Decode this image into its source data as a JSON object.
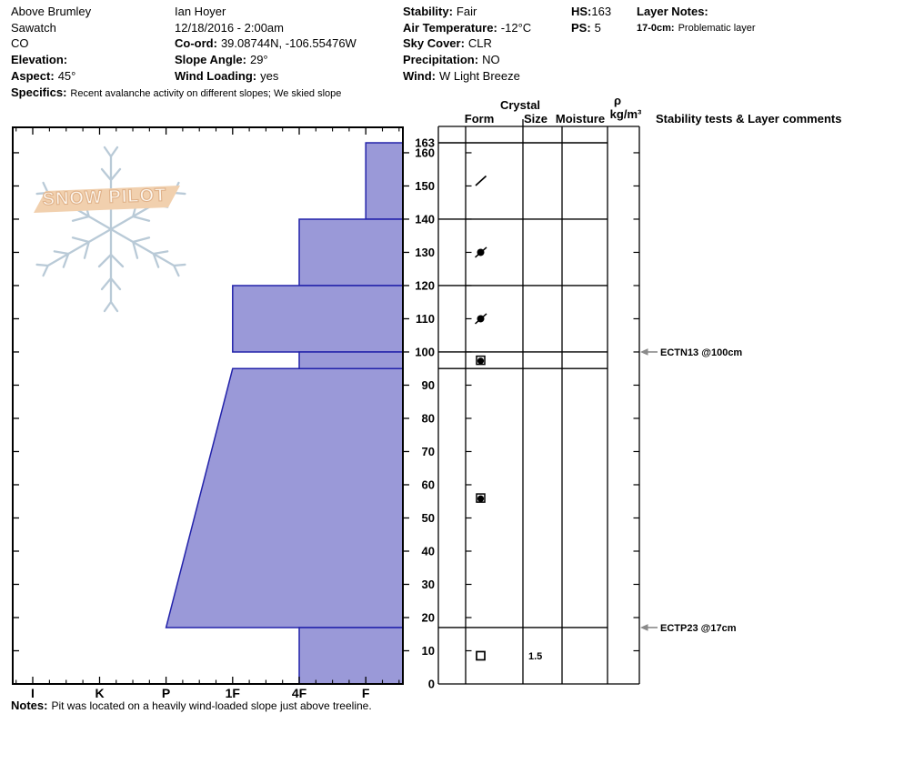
{
  "header": {
    "col1": {
      "l1": {
        "label": "",
        "value": "Above Brumley"
      },
      "l2": {
        "label": "",
        "value": "Sawatch"
      },
      "l3": {
        "label": "",
        "value": "CO"
      },
      "l4": {
        "label": "Elevation:",
        "value": ""
      },
      "l5": {
        "label": "Aspect:",
        "value": "45°"
      }
    },
    "col2": {
      "l1": {
        "label": "",
        "value": "Ian Hoyer"
      },
      "l2": {
        "label": "",
        "value": "12/18/2016 - 2:00am"
      },
      "l3": {
        "label": "Co-ord:",
        "value": "39.08744N, -106.55476W"
      },
      "l4": {
        "label": "Slope Angle:",
        "value": "29°"
      },
      "l5": {
        "label": "Wind Loading:",
        "value": "yes"
      }
    },
    "col3": {
      "l1": {
        "label": "Stability:",
        "value": "Fair"
      },
      "l2": {
        "label": "Air Temperature:",
        "value": "-12°C"
      },
      "l3": {
        "label": "Sky Cover:",
        "value": "CLR"
      },
      "l4": {
        "label": "Precipitation:",
        "value": "NO"
      },
      "l5": {
        "label": "Wind:",
        "value": "W Light Breeze"
      }
    },
    "col4": {
      "l1": {
        "label": "HS:",
        "value": "163"
      },
      "l2": {
        "label": "PS:",
        "value": "5"
      }
    },
    "col5": {
      "l1": {
        "label": "Layer Notes:",
        "value": ""
      },
      "l2": {
        "label": "17-0cm:",
        "value": "Problematic layer"
      }
    },
    "specifics": {
      "label": "Specifics:",
      "value": "Recent avalanche activity on different slopes;  We skied slope"
    }
  },
  "columns_header": {
    "crystal": "Crystal",
    "form": "Form",
    "size": "Size",
    "moisture": "Moisture",
    "rho": "ρ",
    "rho_unit": "kg/m³",
    "comments": "Stability tests & Layer comments"
  },
  "logo": {
    "text": "SNOW PILOT"
  },
  "notes": {
    "label": "Notes:",
    "value": "Pit was located on a heavily wind-loaded slope just above treeline."
  },
  "chart_data": {
    "type": "bar",
    "title": "Snow pit hardness profile",
    "orientation": "horizontal-depth-profile",
    "hardness_axis": {
      "categories": [
        "I",
        "K",
        "P",
        "1F",
        "4F",
        "F"
      ]
    },
    "depth_axis": {
      "unit": "cm",
      "max": 163,
      "labels": [
        163,
        160,
        150,
        140,
        130,
        120,
        110,
        100,
        90,
        80,
        70,
        60,
        50,
        40,
        30,
        20,
        10,
        0
      ]
    },
    "layers": [
      {
        "top_cm": 163,
        "bottom_cm": 140,
        "hardness": "F",
        "grain_form": "DF",
        "grain_symbol": "slash",
        "grain_size": ""
      },
      {
        "top_cm": 140,
        "bottom_cm": 120,
        "hardness": "4F",
        "grain_form": "RG-DF",
        "grain_symbol": "dot-slash",
        "grain_size": ""
      },
      {
        "top_cm": 120,
        "bottom_cm": 100,
        "hardness": "1F",
        "grain_form": "RG-DF",
        "grain_symbol": "dot-slash",
        "grain_size": ""
      },
      {
        "top_cm": 100,
        "bottom_cm": 95,
        "hardness": "4F",
        "grain_form": "FC-RG",
        "grain_symbol": "square-dot",
        "grain_size": ""
      },
      {
        "top_cm": 95,
        "bottom_cm": 17,
        "hardness": "1F",
        "hardness_bottom": "P",
        "grain_form": "FC-RG",
        "grain_symbol": "square-dot",
        "grain_size": ""
      },
      {
        "top_cm": 17,
        "bottom_cm": 0,
        "hardness": "4F",
        "grain_form": "FC",
        "grain_symbol": "square",
        "grain_size": "1.5"
      }
    ],
    "stability_tests": [
      {
        "label": "ECTN13 @100cm",
        "depth_cm": 100
      },
      {
        "label": "ECTP23 @17cm",
        "depth_cm": 17
      }
    ],
    "colors": {
      "bar_fill": "#9a99d8",
      "bar_border": "#2222aa",
      "arrow": "#8a8a8a",
      "axis": "#000000"
    }
  }
}
